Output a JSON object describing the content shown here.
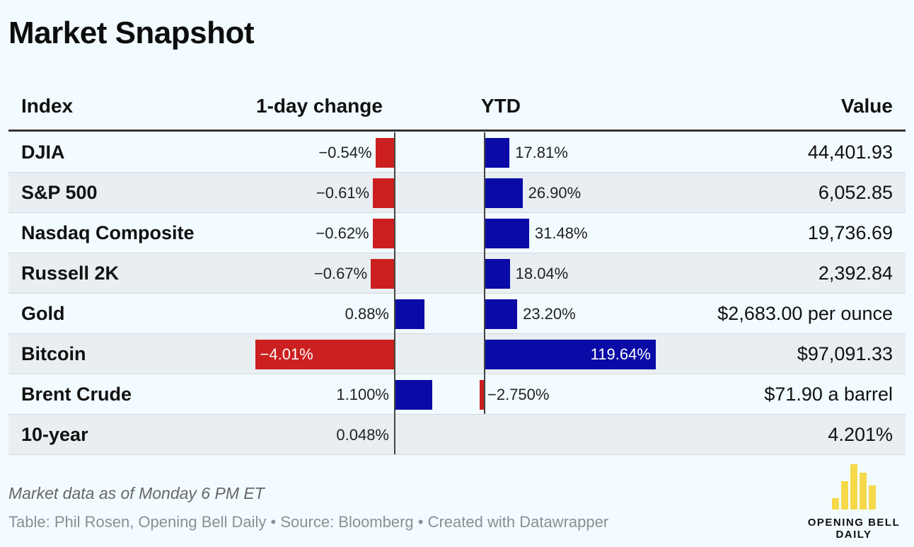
{
  "title": "Market Snapshot",
  "headers": {
    "index": "Index",
    "day": "1-day change",
    "ytd": "YTD",
    "value": "Value"
  },
  "colors": {
    "negative": "#cc1f1f",
    "positive": "#0a0aa6",
    "background": "#f2fbff",
    "row_shade": "#e8eef1"
  },
  "chart_data": {
    "type": "table",
    "columns": [
      "Index",
      "1-day change",
      "YTD",
      "Value"
    ],
    "rows": [
      {
        "name": "DJIA",
        "day": -0.54,
        "day_label": "−0.54%",
        "ytd": 17.81,
        "ytd_label": "17.81%",
        "value": "44,401.93"
      },
      {
        "name": "S&P 500",
        "day": -0.61,
        "day_label": "−0.61%",
        "ytd": 26.9,
        "ytd_label": "26.90%",
        "value": "6,052.85"
      },
      {
        "name": "Nasdaq Composite",
        "day": -0.62,
        "day_label": "−0.62%",
        "ytd": 31.48,
        "ytd_label": "31.48%",
        "value": "19,736.69"
      },
      {
        "name": "Russell 2K",
        "day": -0.67,
        "day_label": "−0.67%",
        "ytd": 18.04,
        "ytd_label": "18.04%",
        "value": "2,392.84"
      },
      {
        "name": "Gold",
        "day": 0.88,
        "day_label": "0.88%",
        "ytd": 23.2,
        "ytd_label": "23.20%",
        "value": "$2,683.00 per ounce"
      },
      {
        "name": "Bitcoin",
        "day": -4.01,
        "day_label": "−4.01%",
        "ytd": 119.64,
        "ytd_label": "119.64%",
        "value": "$97,091.33"
      },
      {
        "name": "Brent Crude",
        "day": 1.1,
        "day_label": "1.100%",
        "ytd": -2.75,
        "ytd_label": "−2.750%",
        "value": "$71.90 a barrel"
      },
      {
        "name": "10-year",
        "day": 0.048,
        "day_label": "0.048%",
        "ytd": null,
        "ytd_label": "",
        "value": "4.201%"
      }
    ]
  },
  "footnote": "Market data as of Monday 6 PM ET",
  "credits": "Table: Phil Rosen, Opening Bell Daily • Source: Bloomberg • Created with Datawrapper",
  "logo": {
    "line1": "OPENING BELL",
    "line2": "DAILY",
    "color": "#f5d94a"
  }
}
